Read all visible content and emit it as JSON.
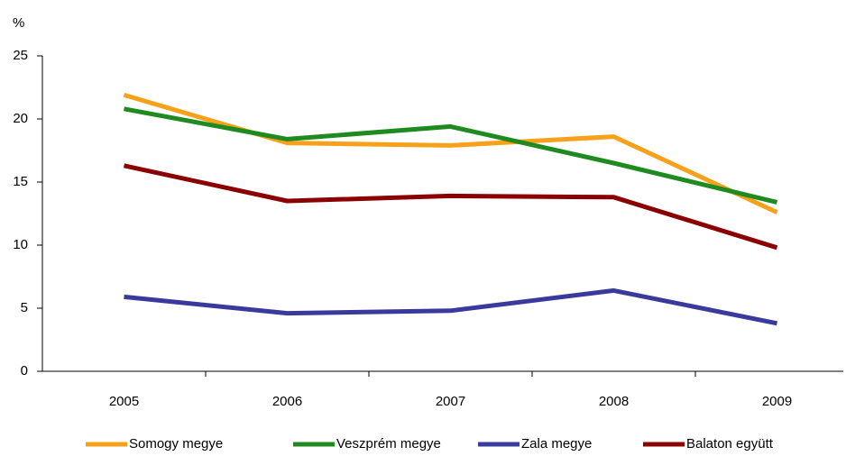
{
  "chart_data": {
    "type": "line",
    "ylabel": "%",
    "categories": [
      "2005",
      "2006",
      "2007",
      "2008",
      "2009"
    ],
    "series": [
      {
        "name": "Somogy megye",
        "color": "#f7a11a",
        "values": [
          21.9,
          18.1,
          17.9,
          18.6,
          12.6
        ]
      },
      {
        "name": "Veszprém megye",
        "color": "#1f8a1f",
        "values": [
          20.8,
          18.4,
          19.4,
          16.5,
          13.4
        ]
      },
      {
        "name": "Zala megye",
        "color": "#3a3a9c",
        "values": [
          5.9,
          4.6,
          4.8,
          6.4,
          3.8
        ]
      },
      {
        "name": "Balaton együtt",
        "color": "#8b0000",
        "values": [
          16.3,
          13.5,
          13.9,
          13.8,
          9.8
        ]
      }
    ],
    "ylim": [
      0,
      25
    ],
    "yticks": [
      0,
      5,
      10,
      15,
      20,
      25
    ],
    "grid": false,
    "legend": "bottom"
  }
}
